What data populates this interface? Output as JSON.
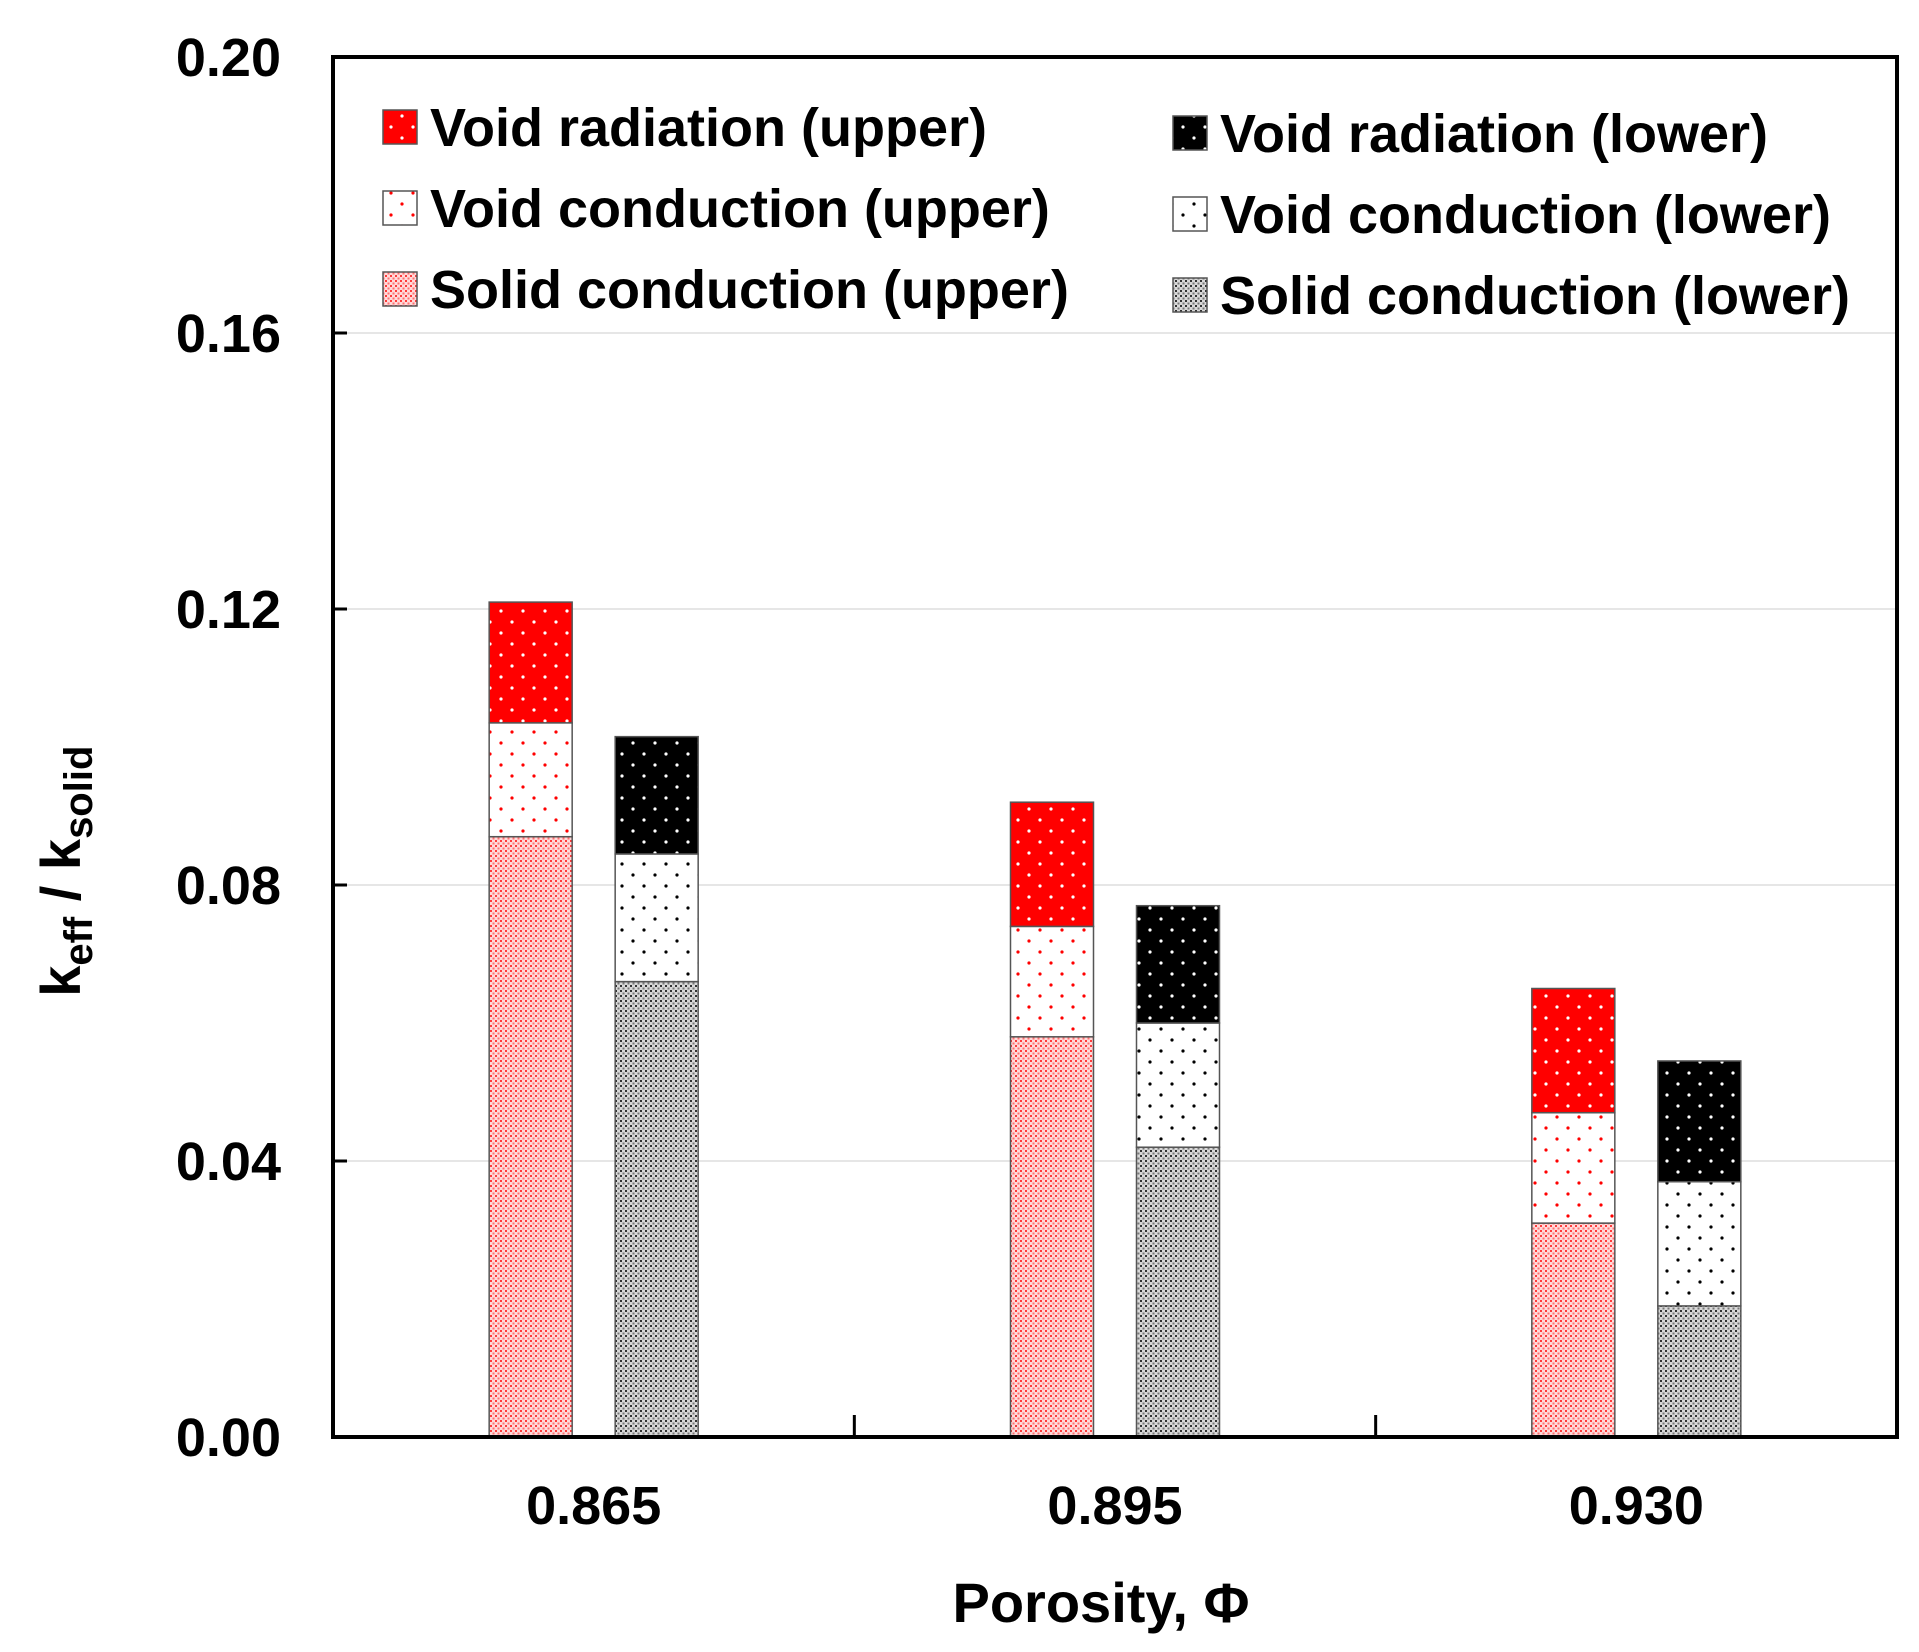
{
  "chart_data": {
    "type": "bar",
    "stacked": true,
    "categories": [
      "0.865",
      "0.895",
      "0.930"
    ],
    "xlabel": "Porosity, Φ",
    "ylabel": {
      "base1": "k",
      "sub1": "eff",
      "mid": " / k",
      "sub2": "solid"
    },
    "ylim": [
      0,
      0.2
    ],
    "yticks": [
      "0.00",
      "0.04",
      "0.08",
      "0.12",
      "0.16",
      "0.20"
    ],
    "ytick_values": [
      0,
      0.04,
      0.08,
      0.12,
      0.16,
      0.2
    ],
    "grid": true,
    "legend_position": "top",
    "groups": [
      {
        "name": "upper",
        "color": "#ff0000",
        "layers": [
          {
            "name": "Solid conduction (upper)",
            "values": [
              0.087,
              0.058,
              0.031
            ],
            "pattern": "dense-red"
          },
          {
            "name": "Void conduction (upper)",
            "values": [
              0.0165,
              0.016,
              0.016
            ],
            "pattern": "sparse-red"
          },
          {
            "name": "Void radiation (upper)",
            "values": [
              0.0175,
              0.018,
              0.018
            ],
            "pattern": "solid-red"
          }
        ]
      },
      {
        "name": "lower",
        "color": "#000000",
        "layers": [
          {
            "name": "Solid conduction (lower)",
            "values": [
              0.066,
              0.042,
              0.019
            ],
            "pattern": "dense-black"
          },
          {
            "name": "Void conduction (lower)",
            "values": [
              0.0185,
              0.018,
              0.018
            ],
            "pattern": "sparse-black"
          },
          {
            "name": "Void radiation (lower)",
            "values": [
              0.017,
              0.017,
              0.0175
            ],
            "pattern": "solid-black"
          }
        ]
      }
    ],
    "legend": {
      "left": [
        "Void radiation (upper)",
        "Void conduction (upper)",
        "Solid conduction (upper)"
      ],
      "right": [
        "Void radiation (lower)",
        "Void conduction (lower)",
        "Solid conduction (lower)"
      ]
    },
    "legend_patterns": {
      "left": [
        "solid-red",
        "sparse-red",
        "dense-red"
      ],
      "right": [
        "solid-black",
        "sparse-black",
        "dense-black"
      ]
    }
  }
}
